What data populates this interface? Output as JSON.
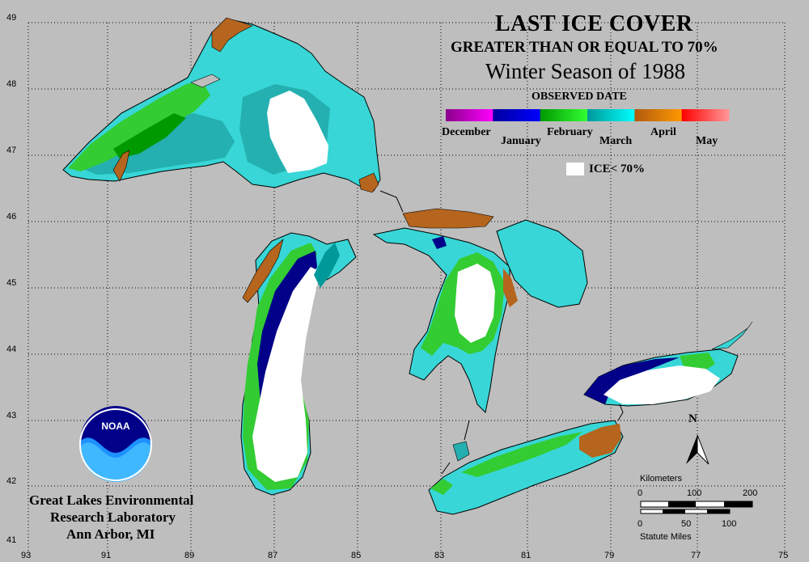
{
  "title": {
    "line1": "LAST ICE COVER",
    "line2": "GREATER THAN OR EQUAL TO 70%",
    "line3": "Winter Season of 1988"
  },
  "legend": {
    "heading": "OBSERVED DATE",
    "months": [
      "December",
      "January",
      "February",
      "March",
      "April",
      "May"
    ],
    "colors": {
      "december": [
        "#8b008b",
        "#ff00ff"
      ],
      "january": [
        "#0000a0",
        "#0000ff"
      ],
      "february": [
        "#009900",
        "#33ff33"
      ],
      "march": [
        "#009999",
        "#00ffff"
      ],
      "april": [
        "#b05a10",
        "#ff9900"
      ],
      "may": [
        "#ff0000",
        "#ff9999"
      ]
    },
    "ice_label": "ICE< 70%"
  },
  "axes": {
    "latitudes": [
      "49",
      "48",
      "47",
      "46",
      "45",
      "44",
      "43",
      "42",
      "41"
    ],
    "longitudes": [
      "93",
      "91",
      "89",
      "87",
      "85",
      "83",
      "81",
      "79",
      "77",
      "75"
    ]
  },
  "north_label": "N",
  "scale": {
    "km_label": "Kilometers",
    "km_ticks": [
      "0",
      "100",
      "200"
    ],
    "mi_ticks": [
      "0",
      "50",
      "100"
    ],
    "mi_label": "Statute Miles"
  },
  "organization": {
    "line1": "Great Lakes Environmental",
    "line2": "Research Laboratory",
    "line3": "Ann Arbor, MI"
  },
  "logo_text": "NOAA",
  "colors": {
    "background": "#bebebe",
    "land_outline": "#000000",
    "ice_lt_70": "#ffffff",
    "march_ice": "#38d6d6",
    "march_dark": "#24b0b0",
    "february_ice": "#33cc33",
    "january_ice": "#000088",
    "april_ice": "#b5651d"
  }
}
